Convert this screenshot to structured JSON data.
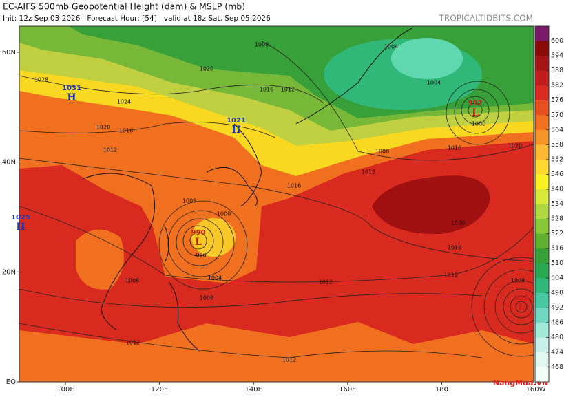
{
  "header": {
    "title": "EC-AIFS 500mb Geopotential Height (dam) & MSLP (mb)",
    "subtitle": "Init: 12z Sep 03 2026   Forecast Hour: [54]   valid at 18z Sat, Sep 05 2026",
    "source": "TROPICALTIDBITS.COM"
  },
  "axes": {
    "lat_ticks": [
      {
        "value": 60,
        "label": "60N"
      },
      {
        "value": 40,
        "label": "40N"
      },
      {
        "value": 20,
        "label": "20N"
      },
      {
        "value": 0,
        "label": "EQ"
      }
    ],
    "lon_ticks": [
      {
        "value": 100,
        "label": "100E"
      },
      {
        "value": 120,
        "label": "120E"
      },
      {
        "value": 140,
        "label": "140E"
      },
      {
        "value": 160,
        "label": "160E"
      },
      180,
      {
        "value": 200,
        "label": "160W"
      }
    ]
  },
  "colorbar": {
    "ticks": [
      600,
      594,
      588,
      582,
      576,
      570,
      564,
      558,
      552,
      546,
      540,
      534,
      528,
      522,
      516,
      510,
      504,
      498,
      492,
      486,
      480,
      474,
      468
    ],
    "colors": [
      "#7a1a6a",
      "#8b0a0a",
      "#a51414",
      "#c01c1c",
      "#d82a1e",
      "#e85020",
      "#f07020",
      "#f59428",
      "#fbb830",
      "#fcd830",
      "#f8f020",
      "#d8e838",
      "#b0d840",
      "#88c838",
      "#60b030",
      "#38a038",
      "#28a850",
      "#30b878",
      "#48c8a0",
      "#70d8c0",
      "#a0e8d8",
      "#c8f0e8",
      "#e0f8f0",
      "#f0fff8"
    ]
  },
  "centers": [
    {
      "type": "H",
      "value": 1031
    },
    {
      "type": "H",
      "value": 1021
    },
    {
      "type": "H",
      "value": 1025
    },
    {
      "type": "L",
      "value": 990
    },
    {
      "type": "L",
      "value": 992
    },
    {
      "type": "L",
      "value": 959
    }
  ],
  "contour_labels": [
    1008,
    1004,
    1004,
    1000,
    1008,
    1016,
    1020,
    1012,
    1016,
    1020,
    1016,
    1012,
    1012,
    1008,
    1008,
    1004,
    1008,
    1012,
    1012,
    996,
    1000,
    1008,
    1016,
    1012,
    1020,
    1024,
    1028,
    1020,
    1016,
    1012
  ],
  "watermark": "NangMua.VN"
}
